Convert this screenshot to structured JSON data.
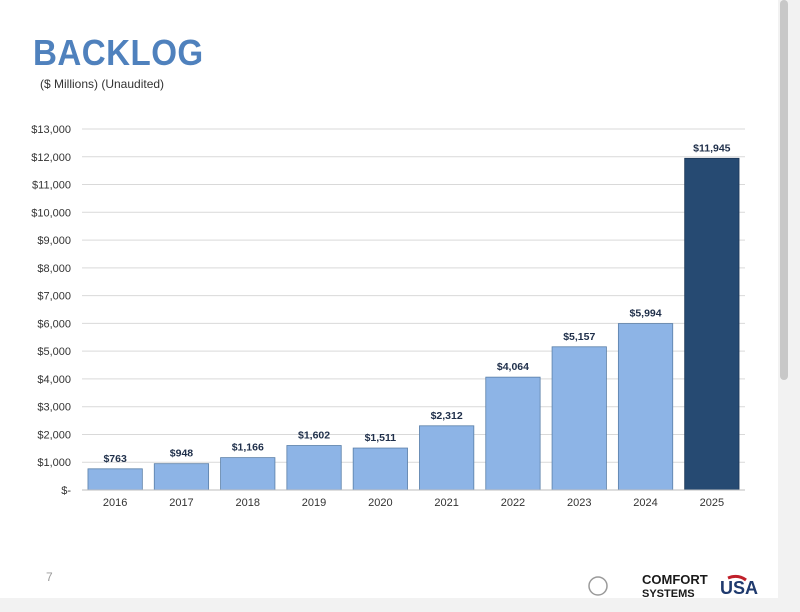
{
  "slide": {
    "title": "BACKLOG",
    "subtitle": "($ Millions) (Unaudited)",
    "page_number": "7"
  },
  "logo": {
    "line1": "COMFORT",
    "line2": "SYSTEMS",
    "mark": "USA"
  },
  "colors": {
    "bar": "#8db4e6",
    "bar_highlight": "#264a72",
    "title": "#4f81bd"
  },
  "chart_data": {
    "type": "bar",
    "title": "",
    "xlabel": "",
    "ylabel": "",
    "categories": [
      "2016",
      "2017",
      "2018",
      "2019",
      "2020",
      "2021",
      "2022",
      "2023",
      "2024",
      "2025"
    ],
    "values": [
      763,
      948,
      1166,
      1602,
      1511,
      2312,
      4064,
      5157,
      5994,
      11945
    ],
    "data_labels": [
      "$763",
      "$948",
      "$1,166",
      "$1,602",
      "$1,511",
      "$2,312",
      "$4,064",
      "$5,157",
      "$5,994",
      "$11,945"
    ],
    "highlight_index": 9,
    "ylim": [
      0,
      13000
    ],
    "yticks": [
      0,
      1000,
      2000,
      3000,
      4000,
      5000,
      6000,
      7000,
      8000,
      9000,
      10000,
      11000,
      12000,
      13000
    ],
    "ytick_labels": [
      "$-",
      "$1,000",
      "$2,000",
      "$3,000",
      "$4,000",
      "$5,000",
      "$6,000",
      "$7,000",
      "$8,000",
      "$9,000",
      "$10,000",
      "$11,000",
      "$12,000",
      "$13,000"
    ],
    "grid": true,
    "legend": "none"
  }
}
